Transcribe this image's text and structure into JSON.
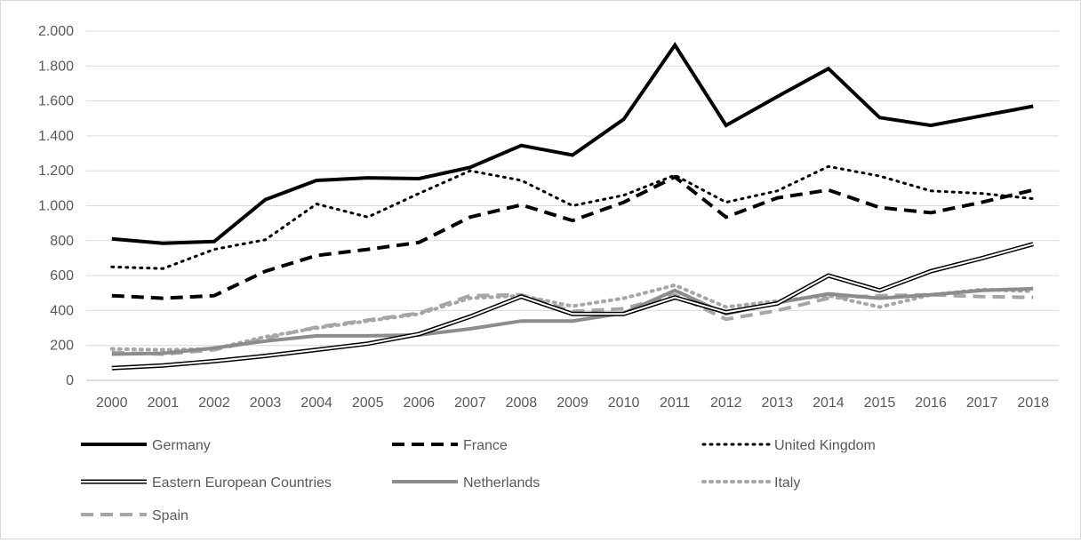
{
  "chart_data": {
    "type": "line",
    "title": "",
    "xlabel": "",
    "ylabel": "",
    "ylim": [
      0,
      2000
    ],
    "y_ticks": [
      0,
      200,
      400,
      600,
      800,
      1000,
      1200,
      1400,
      1600,
      1800,
      2000
    ],
    "y_tick_labels": [
      "0",
      "200",
      "400",
      "600",
      "800",
      "1.000",
      "1.200",
      "1.400",
      "1.600",
      "1.800",
      "2.000"
    ],
    "grid": "horizontal",
    "legend_position": "bottom",
    "categories": [
      "2000",
      "2001",
      "2002",
      "2003",
      "2004",
      "2005",
      "2006",
      "2007",
      "2008",
      "2009",
      "2010",
      "2011",
      "2012",
      "2013",
      "2014",
      "2015",
      "2016",
      "2017",
      "2018"
    ],
    "series": [
      {
        "name": "Germany",
        "style": "solid-thick",
        "color": "#000000",
        "values": [
          810,
          785,
          795,
          1035,
          1145,
          1160,
          1155,
          1220,
          1345,
          1290,
          1495,
          1920,
          1460,
          1625,
          1785,
          1505,
          1460,
          1515,
          1570
        ]
      },
      {
        "name": "France",
        "style": "dashed",
        "color": "#000000",
        "values": [
          485,
          470,
          485,
          625,
          715,
          750,
          790,
          935,
          1005,
          915,
          1020,
          1165,
          935,
          1045,
          1090,
          990,
          960,
          1020,
          1090
        ]
      },
      {
        "name": "United Kingdom",
        "style": "dotted",
        "color": "#000000",
        "values": [
          650,
          640,
          750,
          805,
          1010,
          935,
          1070,
          1200,
          1145,
          1000,
          1060,
          1175,
          1020,
          1085,
          1225,
          1170,
          1085,
          1070,
          1040
        ]
      },
      {
        "name": "Eastern European Countries",
        "style": "double",
        "color": "#000000",
        "values": [
          70,
          85,
          110,
          140,
          175,
          210,
          265,
          365,
          480,
          380,
          380,
          475,
          390,
          440,
          600,
          515,
          625,
          700,
          780
        ]
      },
      {
        "name": "Netherlands",
        "style": "solid-gray",
        "color": "#8c8c8c",
        "values": [
          150,
          155,
          185,
          225,
          255,
          255,
          260,
          295,
          340,
          340,
          385,
          515,
          380,
          445,
          495,
          470,
          490,
          515,
          525
        ]
      },
      {
        "name": "Italy",
        "style": "dotted-gray",
        "color": "#a6a6a6",
        "values": [
          180,
          175,
          180,
          250,
          300,
          340,
          380,
          470,
          485,
          425,
          470,
          545,
          420,
          455,
          485,
          420,
          490,
          520,
          510
        ]
      },
      {
        "name": "Spain",
        "style": "dashed-gray",
        "color": "#a6a6a6",
        "values": [
          160,
          150,
          175,
          240,
          305,
          345,
          385,
          485,
          490,
          395,
          410,
          490,
          350,
          400,
          470,
          485,
          490,
          480,
          475
        ]
      }
    ]
  }
}
